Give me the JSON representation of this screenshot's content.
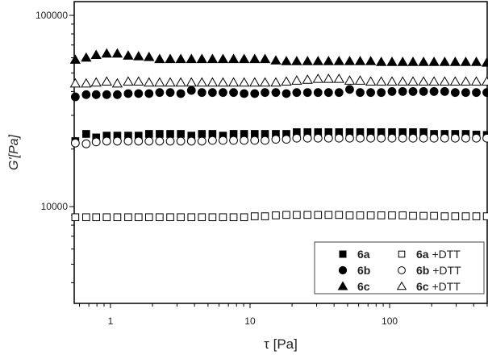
{
  "chart_data": {
    "type": "scatter",
    "xlabel": "τ [Pa]",
    "ylabel": "G'[Pa]",
    "xscale": "log",
    "yscale": "log",
    "xlim": [
      0.55,
      500
    ],
    "ylim": [
      3120,
      118000
    ],
    "xticks": [
      1,
      10,
      100
    ],
    "xtick_labels": [
      "1",
      "10",
      "100"
    ],
    "yticks": [
      10000,
      100000
    ],
    "ytick_labels": [
      "10000",
      "100000"
    ],
    "grid": false,
    "legend_position": "bottom-right",
    "x": [
      0.56,
      0.67,
      0.79,
      0.94,
      1.12,
      1.34,
      1.59,
      1.89,
      2.25,
      2.68,
      3.19,
      3.8,
      4.52,
      5.38,
      6.4,
      7.62,
      9.07,
      10.8,
      12.8,
      15.3,
      18.2,
      21.6,
      25.8,
      30.7,
      36.5,
      43.4,
      51.7,
      61.5,
      73.2,
      87.1,
      104,
      124,
      147,
      175,
      208,
      248,
      295,
      351,
      418,
      497
    ],
    "series": [
      {
        "name": "6a",
        "marker": "square",
        "filled": true,
        "values": [
          22000,
          24000,
          23000,
          23500,
          23500,
          23500,
          23500,
          24000,
          24000,
          24000,
          24000,
          23500,
          24000,
          24000,
          23500,
          24000,
          24000,
          24000,
          24000,
          24000,
          24000,
          24500,
          24500,
          24500,
          24500,
          24500,
          24500,
          24500,
          24500,
          24500,
          24500,
          24500,
          24500,
          24500,
          24000,
          24000,
          24000,
          24000,
          23800,
          23700
        ]
      },
      {
        "name": "6b",
        "marker": "circle",
        "filled": true,
        "values": [
          37500,
          38500,
          38500,
          38500,
          38500,
          39000,
          39000,
          39000,
          39500,
          39500,
          39000,
          40500,
          39500,
          39500,
          39500,
          39500,
          39000,
          39000,
          39500,
          39500,
          39000,
          39500,
          39500,
          39500,
          39500,
          39500,
          41000,
          39500,
          39500,
          39500,
          40000,
          40000,
          40000,
          40000,
          40000,
          40000,
          39500,
          39500,
          39500,
          39500
        ]
      },
      {
        "name": "6c",
        "marker": "triangle",
        "filled": true,
        "values": [
          58500,
          60000,
          62000,
          63000,
          63000,
          61500,
          61000,
          60500,
          59000,
          59000,
          59000,
          59000,
          59000,
          59000,
          59000,
          59000,
          59000,
          59000,
          59000,
          58000,
          57500,
          57500,
          57500,
          57500,
          57500,
          57500,
          57500,
          57500,
          57500,
          57000,
          57000,
          57000,
          57000,
          57000,
          57000,
          57000,
          57000,
          57000,
          57000,
          56500
        ]
      },
      {
        "name": "6a +DTT",
        "marker": "square",
        "filled": false,
        "values": [
          8800,
          8800,
          8800,
          8800,
          8800,
          8800,
          8800,
          8800,
          8800,
          8800,
          8800,
          8800,
          8800,
          8800,
          8800,
          8800,
          8800,
          8900,
          8900,
          9000,
          9050,
          9050,
          9050,
          9050,
          9050,
          9050,
          9000,
          9000,
          9000,
          9000,
          9000,
          9000,
          8950,
          8950,
          8950,
          8900,
          8900,
          8900,
          8900,
          8900
        ]
      },
      {
        "name": "6b +DTT",
        "marker": "circle",
        "filled": false,
        "values": [
          21500,
          21300,
          21800,
          22000,
          22000,
          22000,
          22000,
          22000,
          22000,
          22000,
          22000,
          22000,
          22000,
          22200,
          22200,
          22200,
          22200,
          22200,
          22200,
          22500,
          22500,
          22800,
          22800,
          22800,
          22800,
          22800,
          22800,
          22800,
          22800,
          22800,
          22800,
          22800,
          22800,
          22800,
          22800,
          22800,
          22800,
          22800,
          22800,
          22800
        ]
      },
      {
        "name": "6c +DTT",
        "marker": "triangle",
        "filled": false,
        "values": [
          44000,
          44000,
          44500,
          45000,
          44000,
          45000,
          45000,
          44500,
          44500,
          44500,
          44500,
          44500,
          44500,
          44500,
          44500,
          44500,
          44500,
          44500,
          44500,
          44500,
          45000,
          45500,
          46000,
          46500,
          46500,
          46500,
          45500,
          45500,
          45000,
          45000,
          45000,
          45000,
          45000,
          45000,
          45000,
          45000,
          45000,
          45000,
          45000,
          45000
        ]
      }
    ]
  }
}
